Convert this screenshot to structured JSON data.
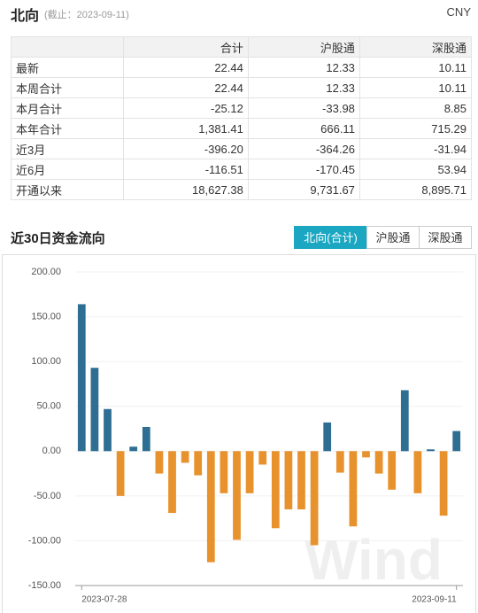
{
  "header": {
    "title": "北向",
    "date_note": "(截止：2023-09-11)",
    "currency": "CNY"
  },
  "table": {
    "columns": [
      "合计",
      "沪股通",
      "深股通"
    ],
    "rows": [
      {
        "label": "最新",
        "values": [
          "22.44",
          "12.33",
          "10.11"
        ]
      },
      {
        "label": "本周合计",
        "values": [
          "22.44",
          "12.33",
          "10.11"
        ]
      },
      {
        "label": "本月合计",
        "values": [
          "-25.12",
          "-33.98",
          "8.85"
        ]
      },
      {
        "label": "本年合计",
        "values": [
          "1,381.41",
          "666.11",
          "715.29"
        ]
      },
      {
        "label": "近3月",
        "values": [
          "-396.20",
          "-364.26",
          "-31.94"
        ]
      },
      {
        "label": "近6月",
        "values": [
          "-116.51",
          "-170.45",
          "53.94"
        ]
      },
      {
        "label": "开通以来",
        "values": [
          "18,627.38",
          "9,731.67",
          "8,895.71"
        ]
      }
    ]
  },
  "section": {
    "title": "近30日资金流向",
    "tabs": [
      "北向(合计)",
      "沪股通",
      "深股通"
    ],
    "active_tab": 0
  },
  "chart_data": {
    "type": "bar",
    "categories": [
      "2023-07-28",
      null,
      null,
      null,
      null,
      null,
      null,
      null,
      null,
      null,
      null,
      null,
      null,
      null,
      null,
      null,
      null,
      null,
      null,
      null,
      null,
      null,
      null,
      null,
      null,
      null,
      null,
      null,
      null,
      "2023-09-11"
    ],
    "values": [
      164,
      93,
      47,
      -50,
      5,
      27,
      -25,
      -69,
      -13,
      -27,
      -124,
      -47,
      -99,
      -47,
      -15,
      -86,
      -65,
      -65,
      -105,
      32,
      -24,
      -84,
      -7,
      -25,
      -43,
      68,
      -47,
      2,
      -72,
      22.44
    ],
    "positive_color": "#2e6e93",
    "negative_color": "#e8922e",
    "ylim": [
      -150,
      200
    ],
    "yticks": [
      {
        "value": -150,
        "label": "-150.00"
      },
      {
        "value": -100,
        "label": "-100.00"
      },
      {
        "value": -50,
        "label": "-50.00"
      },
      {
        "value": 0,
        "label": "0.00"
      },
      {
        "value": 50,
        "label": "50.00"
      },
      {
        "value": 100,
        "label": "100.00"
      },
      {
        "value": 150,
        "label": "150.00"
      },
      {
        "value": 200,
        "label": "200.00"
      }
    ],
    "grid": true,
    "watermark": "Wind"
  }
}
